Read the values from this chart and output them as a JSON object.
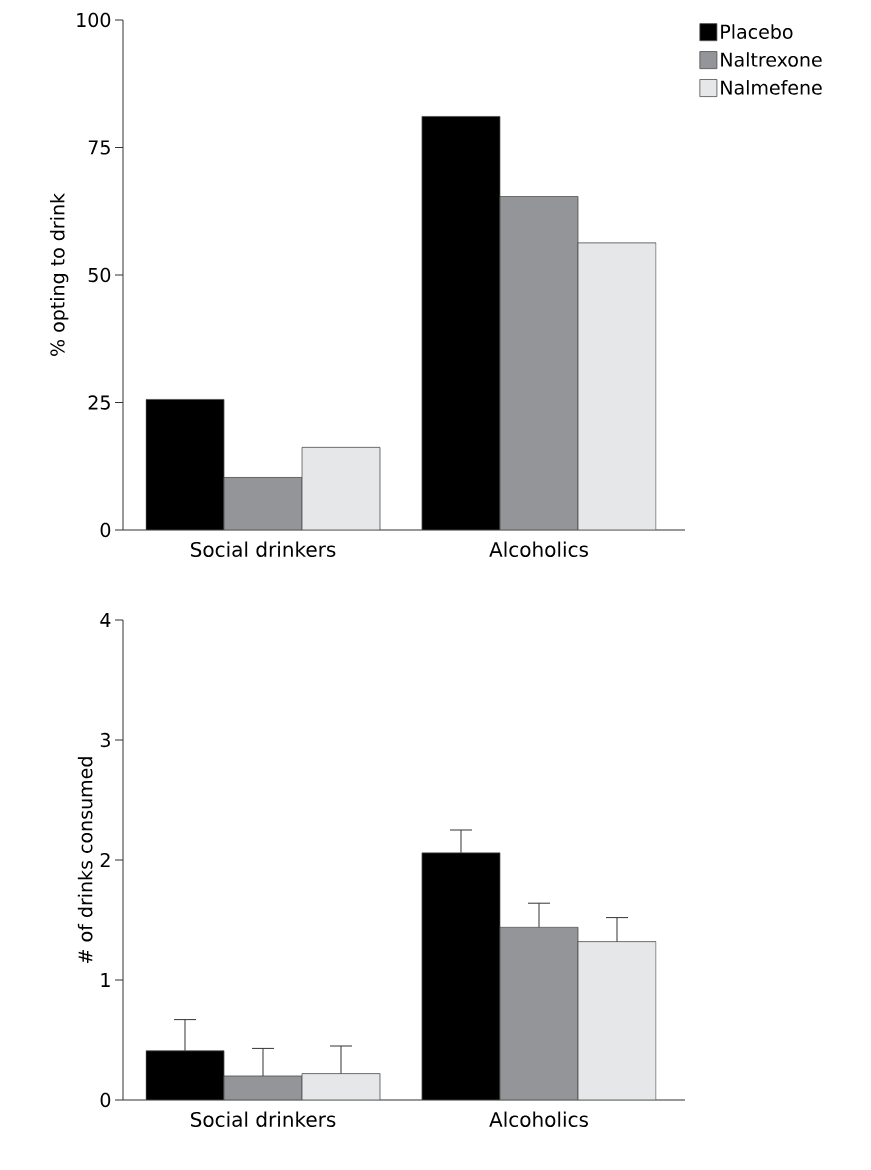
{
  "chart_data": [
    {
      "type": "bar",
      "ylabel": "% opting to drink",
      "categories": [
        "Social drinkers",
        "Alcoholics"
      ],
      "ylim": [
        0,
        100
      ],
      "yticks": [
        0,
        25,
        50,
        75,
        100
      ],
      "legend": "top right",
      "series": [
        {
          "name": "Placebo",
          "color": "#000000",
          "values": [
            25.6,
            81.1
          ]
        },
        {
          "name": "Naltrexone",
          "color": "#939598",
          "values": [
            10.3,
            65.4
          ]
        },
        {
          "name": "Nalmefene",
          "color": "#e6e7e8",
          "values": [
            16.2,
            56.3
          ]
        }
      ]
    },
    {
      "type": "bar",
      "ylabel": "# of drinks consumed",
      "categories": [
        "Social drinkers",
        "Alcoholics"
      ],
      "ylim": [
        0,
        4
      ],
      "yticks": [
        0,
        1,
        2,
        3,
        4
      ],
      "series": [
        {
          "color": "#000000",
          "values": [
            0.41,
            2.06
          ],
          "errors": [
            [
              0.41,
              0.67
            ],
            [
              2.06,
              2.25
            ]
          ]
        },
        {
          "color": "#939598",
          "values": [
            0.2,
            1.44
          ],
          "errors": [
            [
              0.2,
              0.43
            ],
            [
              1.44,
              1.64
            ]
          ]
        },
        {
          "color": "#e6e7e8",
          "values": [
            0.22,
            1.32
          ],
          "errors": [
            [
              0.22,
              0.45
            ],
            [
              1.32,
              1.52
            ]
          ]
        }
      ]
    }
  ]
}
